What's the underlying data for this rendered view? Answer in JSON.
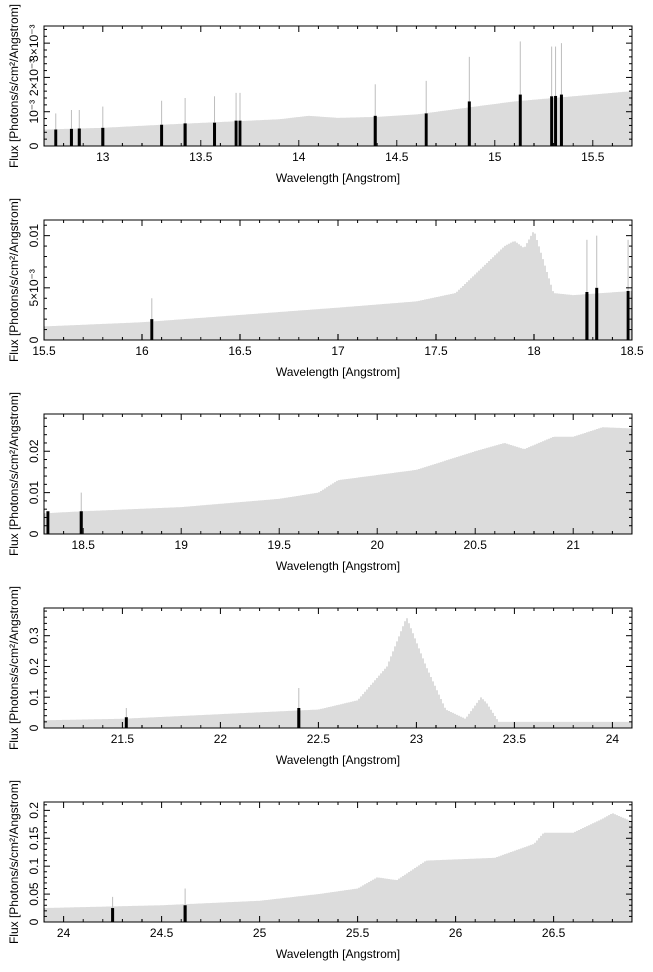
{
  "figure": {
    "ylabel": "Flux [Photons/s/cm²/Angstrom]",
    "xlabel": "Wavelength [Angstrom]"
  },
  "chart_data": [
    {
      "type": "line",
      "xlabel": "Wavelength [Angstrom]",
      "ylabel": "Flux [Photons/s/cm²/Angstrom]",
      "xlim": [
        12.7,
        15.7
      ],
      "ylim": [
        0,
        0.0035
      ],
      "x_ticks": [
        13,
        13.5,
        14,
        14.5,
        15,
        15.5
      ],
      "x_tick_labels": [
        "13",
        "13.5",
        "14",
        "14.5",
        "15",
        "15.5"
      ],
      "y_ticks": [
        0,
        0.001,
        0.002,
        0.003
      ],
      "y_tick_labels": [
        "0",
        "10⁻³",
        "2×10⁻³",
        "3×10⁻³"
      ],
      "series": [
        {
          "x": [
            12.7,
            13.0,
            13.3,
            13.6,
            13.9,
            14.05,
            14.2,
            14.4,
            14.6,
            14.9,
            15.1,
            15.3,
            15.5,
            15.7
          ],
          "y": [
            0.00048,
            0.00053,
            0.00062,
            0.0007,
            0.00078,
            0.00088,
            0.00082,
            0.00085,
            0.00092,
            0.00115,
            0.0013,
            0.0014,
            0.0015,
            0.0016
          ]
        }
      ],
      "features": [
        {
          "x": 12.76,
          "y": 0.00048,
          "err": 0.00095
        },
        {
          "x": 12.84,
          "y": 0.0005,
          "err": 0.00105
        },
        {
          "x": 12.88,
          "y": 0.00051,
          "err": 0.00105
        },
        {
          "x": 13.0,
          "y": 0.00053,
          "err": 0.00115
        },
        {
          "x": 13.3,
          "y": 0.00062,
          "err": 0.00132
        },
        {
          "x": 13.42,
          "y": 0.00066,
          "err": 0.0014
        },
        {
          "x": 13.57,
          "y": 0.00068,
          "err": 0.00145
        },
        {
          "x": 13.68,
          "y": 0.00074,
          "err": 0.00155
        },
        {
          "x": 13.7,
          "y": 0.00074,
          "err": 0.00155
        },
        {
          "x": 14.39,
          "y": 0.00088,
          "err": 0.0018
        },
        {
          "x": 14.65,
          "y": 0.00095,
          "err": 0.0019
        },
        {
          "x": 14.87,
          "y": 0.0013,
          "err": 0.0026
        },
        {
          "x": 15.13,
          "y": 0.0015,
          "err": 0.00305
        },
        {
          "x": 15.29,
          "y": 0.00145,
          "err": 0.0029
        },
        {
          "x": 15.31,
          "y": 0.00146,
          "err": 0.0029
        },
        {
          "x": 15.34,
          "y": 0.0015,
          "err": 0.003
        }
      ]
    },
    {
      "type": "line",
      "xlabel": "Wavelength [Angstrom]",
      "ylabel": "Flux [Photons/s/cm²/Angstrom]",
      "xlim": [
        15.5,
        18.5
      ],
      "ylim": [
        0,
        0.0115
      ],
      "x_ticks": [
        15.5,
        16,
        16.5,
        17,
        17.5,
        18,
        18.5
      ],
      "x_tick_labels": [
        "15.5",
        "16",
        "16.5",
        "17",
        "17.5",
        "18",
        "18.5"
      ],
      "y_ticks": [
        0,
        0.005,
        0.01
      ],
      "y_tick_labels": [
        "0",
        "5×10⁻³",
        "0.01"
      ],
      "series": [
        {
          "x": [
            15.5,
            16.0,
            16.5,
            17.0,
            17.4,
            17.6,
            17.75,
            17.85,
            17.9,
            17.95,
            18.0,
            18.05,
            18.1,
            18.2,
            18.5
          ],
          "y": [
            0.0013,
            0.0017,
            0.0024,
            0.0031,
            0.0037,
            0.0045,
            0.0072,
            0.009,
            0.0095,
            0.0088,
            0.0105,
            0.0075,
            0.0045,
            0.0043,
            0.0047
          ]
        }
      ],
      "features": [
        {
          "x": 16.05,
          "y": 0.002,
          "err": 0.004
        },
        {
          "x": 18.27,
          "y": 0.0046,
          "err": 0.0096
        },
        {
          "x": 18.32,
          "y": 0.005,
          "err": 0.01
        },
        {
          "x": 18.48,
          "y": 0.0047,
          "err": 0.0096
        }
      ]
    },
    {
      "type": "line",
      "xlabel": "Wavelength [Angstrom]",
      "ylabel": "Flux [Photons/s/cm²/Angstrom]",
      "xlim": [
        18.3,
        21.3
      ],
      "ylim": [
        0,
        0.029
      ],
      "x_ticks": [
        18.5,
        19,
        19.5,
        20,
        20.5,
        21
      ],
      "x_tick_labels": [
        "18.5",
        "19",
        "19.5",
        "20",
        "20.5",
        "21"
      ],
      "y_ticks": [
        0,
        0.01,
        0.02
      ],
      "y_tick_labels": [
        "0",
        "0.01",
        "0.02"
      ],
      "series": [
        {
          "x": [
            18.3,
            18.5,
            19.0,
            19.5,
            19.7,
            19.8,
            20.2,
            20.5,
            20.65,
            20.75,
            20.9,
            21.0,
            21.15,
            21.3
          ],
          "y": [
            0.005,
            0.0055,
            0.0065,
            0.0085,
            0.01,
            0.013,
            0.0155,
            0.02,
            0.022,
            0.0205,
            0.0235,
            0.0235,
            0.0258,
            0.0255
          ]
        }
      ],
      "features": [
        {
          "x": 18.32,
          "y": 0.0055,
          "err": 0.0055
        },
        {
          "x": 18.49,
          "y": 0.0055,
          "err": 0.01
        }
      ]
    },
    {
      "type": "line",
      "xlabel": "Wavelength [Angstrom]",
      "ylabel": "Flux [Photons/s/cm²/Angstrom]",
      "xlim": [
        21.1,
        24.1
      ],
      "ylim": [
        0,
        0.39
      ],
      "x_ticks": [
        21.5,
        22,
        22.5,
        23,
        23.5,
        24
      ],
      "x_tick_labels": [
        "21.5",
        "22",
        "22.5",
        "23",
        "23.5",
        "24"
      ],
      "y_ticks": [
        0,
        0.1,
        0.2,
        0.3
      ],
      "y_tick_labels": [
        "0",
        "0.1",
        "0.2",
        "0.3"
      ],
      "series": [
        {
          "x": [
            21.1,
            21.5,
            22.0,
            22.5,
            22.7,
            22.85,
            22.95,
            23.05,
            23.15,
            23.25,
            23.33,
            23.36,
            23.42,
            23.6,
            24.1
          ],
          "y": [
            0.025,
            0.03,
            0.045,
            0.06,
            0.09,
            0.2,
            0.36,
            0.2,
            0.06,
            0.03,
            0.1,
            0.08,
            0.02,
            0.02,
            0.02
          ]
        }
      ],
      "features": [
        {
          "x": 21.52,
          "y": 0.035,
          "err": 0.065
        },
        {
          "x": 22.4,
          "y": 0.065,
          "err": 0.13
        }
      ]
    },
    {
      "type": "line",
      "xlabel": "Wavelength [Angstrom]",
      "ylabel": "Flux [Photons/s/cm²/Angstrom]",
      "xlim": [
        23.9,
        26.9
      ],
      "ylim": [
        0,
        0.215
      ],
      "x_ticks": [
        24,
        24.5,
        25,
        25.5,
        26,
        26.5
      ],
      "x_tick_labels": [
        "24",
        "24.5",
        "25",
        "25.5",
        "26",
        "26.5"
      ],
      "y_ticks": [
        0,
        0.05,
        0.1,
        0.15,
        0.2
      ],
      "y_tick_labels": [
        "0",
        "0.05",
        "0.1",
        "0.15",
        "0.2"
      ],
      "series": [
        {
          "x": [
            23.9,
            24.5,
            25.0,
            25.3,
            25.5,
            25.6,
            25.7,
            25.85,
            26.2,
            26.4,
            26.45,
            26.6,
            26.75,
            26.8,
            26.9
          ],
          "y": [
            0.025,
            0.03,
            0.038,
            0.05,
            0.06,
            0.08,
            0.075,
            0.11,
            0.115,
            0.14,
            0.16,
            0.16,
            0.185,
            0.195,
            0.18
          ]
        }
      ],
      "features": [
        {
          "x": 24.25,
          "y": 0.025,
          "err": 0.045
        },
        {
          "x": 24.62,
          "y": 0.03,
          "err": 0.06
        }
      ]
    }
  ]
}
